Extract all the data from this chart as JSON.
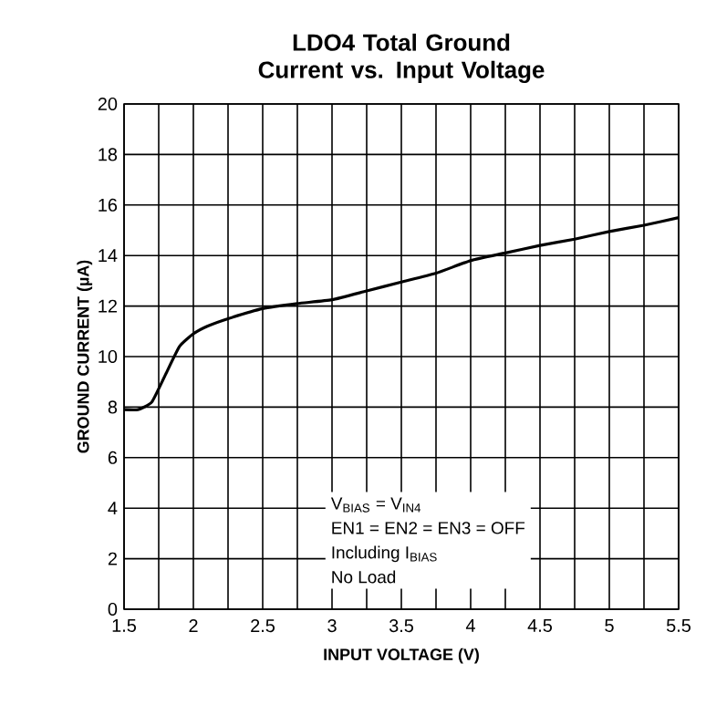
{
  "chart_data": {
    "type": "line",
    "title": "LDO4 Total Ground Current vs. Input Voltage",
    "xlabel": "INPUT VOLTAGE (V)",
    "ylabel": "GROUND CURRENT (µA)",
    "x": [
      1.5,
      1.6,
      1.7,
      1.8,
      1.9,
      2.0,
      2.1,
      2.25,
      2.5,
      2.75,
      3.0,
      3.25,
      3.5,
      3.75,
      4.0,
      4.25,
      4.5,
      4.75,
      5.0,
      5.25,
      5.5
    ],
    "series": [
      {
        "color": "#000000",
        "values": [
          7.9,
          7.9,
          8.2,
          9.3,
          10.4,
          10.9,
          11.2,
          11.5,
          11.9,
          12.1,
          12.25,
          12.6,
          12.95,
          13.3,
          13.8,
          14.1,
          14.4,
          14.65,
          14.95,
          15.2,
          15.5
        ]
      }
    ],
    "xlim": [
      1.5,
      5.5
    ],
    "ylim": [
      0,
      20
    ],
    "xticks": [
      1.5,
      {
        "value": 1.75,
        "label": null
      },
      2,
      {
        "value": 2.25,
        "label": null
      },
      2.5,
      {
        "value": 2.75,
        "label": null
      },
      3,
      {
        "value": 3.25,
        "label": null
      },
      3.5,
      {
        "value": 3.75,
        "label": null
      },
      4,
      {
        "value": 4.25,
        "label": null
      },
      4.5,
      {
        "value": 4.75,
        "label": null
      },
      5,
      {
        "value": 5.25,
        "label": null
      },
      5.5
    ],
    "yticks": [
      0,
      2,
      4,
      6,
      8,
      10,
      12,
      14,
      16,
      18,
      20
    ],
    "grid": true,
    "marker": "none",
    "line_style": "solid",
    "annotations": [
      "V$_{BIAS}$ = V$_{IN4}$",
      "EN1 = EN2 = EN3 = OFF",
      "Including I$_{BIAS}$",
      "No Load"
    ]
  }
}
